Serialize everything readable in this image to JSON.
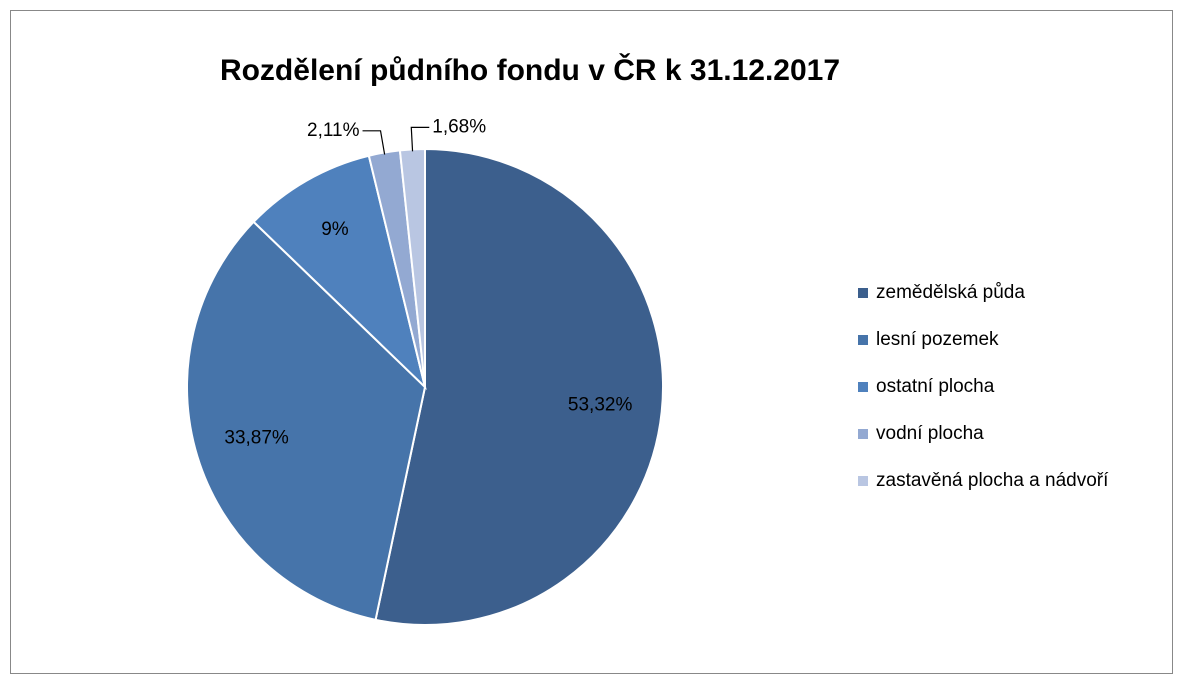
{
  "chart_data": {
    "type": "pie",
    "title": "Rozdělení půdního fondu v ČR k 31.12.2017",
    "categories": [
      "zemědělská půda",
      "lesní pozemek",
      "ostatní plocha",
      "vodní plocha",
      "zastavěná plocha a nádvoří"
    ],
    "values": [
      53.32,
      33.87,
      9,
      2.11,
      1.68
    ],
    "value_labels": [
      "53,32%",
      "33,87%",
      "9%",
      "2,11%",
      "1,68%"
    ],
    "colors": [
      "#3c5f8d",
      "#4674aa",
      "#4f81bd",
      "#93a9d2",
      "#b9c6e2"
    ],
    "legend": "right"
  }
}
